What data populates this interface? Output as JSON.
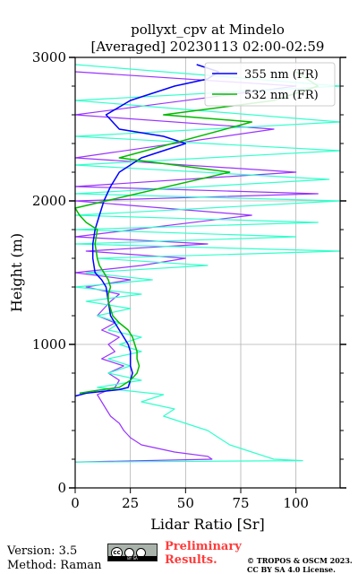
{
  "chart_data": {
    "type": "line",
    "title": "pollyxt_cpv at Mindelo",
    "subtitle": "[Averaged] 20230113 02:00-02:59",
    "xlabel": "Lidar Ratio [Sr]",
    "ylabel": "Height (m)",
    "xlim": [
      0,
      120
    ],
    "ylim": [
      0,
      3000
    ],
    "xticks": [
      0,
      25,
      50,
      75,
      100
    ],
    "yticks": [
      0,
      1000,
      2000,
      3000
    ],
    "grid": true,
    "legend_position": "top-right",
    "series": [
      {
        "name": "355 nm (FR)",
        "color": "#0000ff",
        "role": "main",
        "points": [
          [
            0,
            640
          ],
          [
            5,
            660
          ],
          [
            12,
            672
          ],
          [
            20,
            685
          ],
          [
            24,
            700
          ],
          [
            25,
            750
          ],
          [
            26,
            800
          ],
          [
            25,
            850
          ],
          [
            25,
            900
          ],
          [
            25,
            950
          ],
          [
            24,
            1000
          ],
          [
            22,
            1050
          ],
          [
            20,
            1100
          ],
          [
            18,
            1150
          ],
          [
            16,
            1200
          ],
          [
            15,
            1300
          ],
          [
            14,
            1400
          ],
          [
            12,
            1450
          ],
          [
            9,
            1500
          ],
          [
            8,
            1600
          ],
          [
            8,
            1700
          ],
          [
            9,
            1800
          ],
          [
            11,
            1900
          ],
          [
            13,
            2000
          ],
          [
            16,
            2100
          ],
          [
            20,
            2200
          ],
          [
            30,
            2300
          ],
          [
            50,
            2400
          ],
          [
            40,
            2450
          ],
          [
            20,
            2500
          ],
          [
            14,
            2600
          ],
          [
            25,
            2700
          ],
          [
            45,
            2800
          ],
          [
            60,
            2850
          ],
          [
            65,
            2900
          ],
          [
            55,
            2950
          ]
        ]
      },
      {
        "name": "532 nm (FR)",
        "color": "#00bb00",
        "role": "main",
        "points": [
          [
            2,
            660
          ],
          [
            10,
            680
          ],
          [
            20,
            700
          ],
          [
            25,
            750
          ],
          [
            28,
            800
          ],
          [
            29,
            850
          ],
          [
            28,
            900
          ],
          [
            28,
            950
          ],
          [
            27,
            1000
          ],
          [
            26,
            1050
          ],
          [
            24,
            1100
          ],
          [
            20,
            1150
          ],
          [
            17,
            1200
          ],
          [
            15,
            1300
          ],
          [
            15,
            1350
          ],
          [
            16,
            1400
          ],
          [
            15,
            1450
          ],
          [
            13,
            1500
          ],
          [
            11,
            1550
          ],
          [
            10,
            1600
          ],
          [
            9,
            1700
          ],
          [
            10,
            1800
          ],
          [
            5,
            1850
          ],
          [
            2,
            1900
          ],
          [
            0,
            1950
          ],
          [
            70,
            2200
          ],
          [
            20,
            2300
          ],
          [
            80,
            2550
          ],
          [
            40,
            2600
          ],
          [
            90,
            2700
          ],
          [
            110,
            2800
          ],
          [
            100,
            2900
          ]
        ]
      },
      {
        "name": "",
        "color": "#9933ff",
        "role": "overlay",
        "points": [
          [
            0,
            180
          ],
          [
            62,
            200
          ],
          [
            60,
            220
          ],
          [
            45,
            250
          ],
          [
            30,
            300
          ],
          [
            25,
            350
          ],
          [
            22,
            400
          ],
          [
            20,
            450
          ],
          [
            16,
            500
          ],
          [
            14,
            550
          ],
          [
            12,
            600
          ],
          [
            10,
            650
          ],
          [
            18,
            700
          ],
          [
            20,
            750
          ],
          [
            15,
            800
          ],
          [
            22,
            850
          ],
          [
            12,
            900
          ],
          [
            18,
            950
          ],
          [
            15,
            1000
          ],
          [
            20,
            1050
          ],
          [
            12,
            1100
          ],
          [
            18,
            1150
          ],
          [
            10,
            1200
          ],
          [
            16,
            1300
          ],
          [
            20,
            1350
          ],
          [
            5,
            1400
          ],
          [
            25,
            1450
          ],
          [
            0,
            1500
          ],
          [
            30,
            1550
          ],
          [
            50,
            1600
          ],
          [
            5,
            1650
          ],
          [
            60,
            1700
          ],
          [
            0,
            1750
          ],
          [
            80,
            1900
          ],
          [
            0,
            2000
          ],
          [
            110,
            2050
          ],
          [
            0,
            2100
          ],
          [
            100,
            2200
          ],
          [
            0,
            2300
          ],
          [
            90,
            2500
          ],
          [
            0,
            2600
          ],
          [
            100,
            2800
          ],
          [
            0,
            2900
          ]
        ]
      },
      {
        "name": "",
        "color": "#33ffcc",
        "role": "overlay",
        "points": [
          [
            0,
            180
          ],
          [
            103,
            190
          ],
          [
            90,
            200
          ],
          [
            80,
            250
          ],
          [
            70,
            300
          ],
          [
            65,
            350
          ],
          [
            60,
            400
          ],
          [
            50,
            450
          ],
          [
            40,
            500
          ],
          [
            45,
            550
          ],
          [
            30,
            600
          ],
          [
            40,
            650
          ],
          [
            10,
            700
          ],
          [
            30,
            750
          ],
          [
            15,
            800
          ],
          [
            25,
            850
          ],
          [
            15,
            900
          ],
          [
            30,
            950
          ],
          [
            20,
            1000
          ],
          [
            30,
            1050
          ],
          [
            15,
            1100
          ],
          [
            20,
            1150
          ],
          [
            10,
            1200
          ],
          [
            25,
            1250
          ],
          [
            5,
            1300
          ],
          [
            30,
            1350
          ],
          [
            0,
            1400
          ],
          [
            35,
            1450
          ],
          [
            5,
            1500
          ],
          [
            60,
            1550
          ],
          [
            10,
            1600
          ],
          [
            120,
            1650
          ],
          [
            0,
            1700
          ],
          [
            100,
            1750
          ],
          [
            0,
            1800
          ],
          [
            110,
            1850
          ],
          [
            0,
            1900
          ],
          [
            120,
            2000
          ],
          [
            0,
            2050
          ],
          [
            115,
            2150
          ],
          [
            0,
            2250
          ],
          [
            120,
            2350
          ],
          [
            0,
            2450
          ],
          [
            120,
            2550
          ],
          [
            0,
            2700
          ],
          [
            120,
            2800
          ],
          [
            0,
            2950
          ]
        ]
      }
    ]
  },
  "footer": {
    "version": "Version: 3.5",
    "method": "Method: Raman",
    "license_badge_text": "BY   SA",
    "preliminary_line1": "Preliminary",
    "preliminary_line2": "Results.",
    "copyright_line1": "© TROPOS & OSCM 2023.",
    "copyright_line2": "CC BY SA 4.0 License."
  }
}
